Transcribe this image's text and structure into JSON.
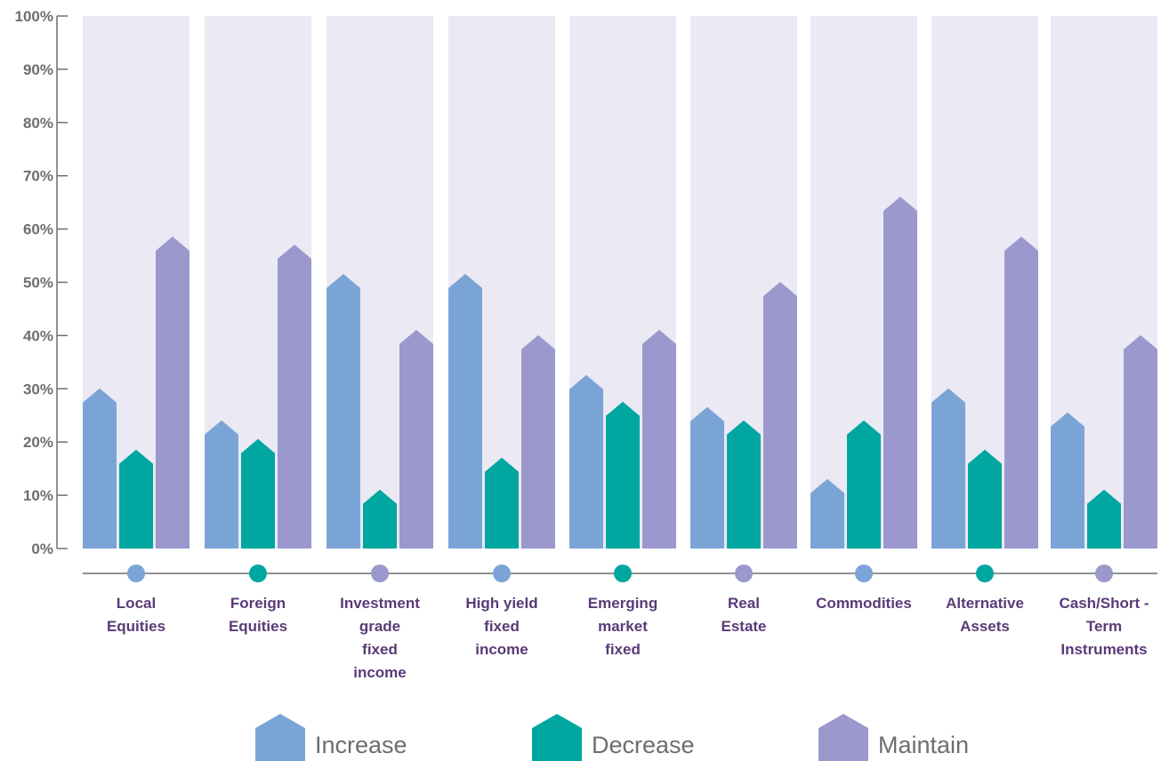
{
  "chart_data": {
    "type": "bar",
    "title": "",
    "xlabel": "",
    "ylabel": "",
    "ylim": [
      0,
      100
    ],
    "y_tick_labels": [
      "0%",
      "10%",
      "20%",
      "30%",
      "40%",
      "50%",
      "60%",
      "70%",
      "80%",
      "90%",
      "100%"
    ],
    "grid": false,
    "legend_position": "bottom",
    "categories": [
      "Local Equities",
      "Foreign Equities",
      "Investment grade fixed income",
      "High yield fixed income",
      "Emerging market fixed",
      "Real Estate",
      "Commodities",
      "Alternative Assets",
      "Cash/Short - Term Instruments"
    ],
    "category_label_lines": [
      [
        "Local",
        "Equities"
      ],
      [
        "Foreign",
        "Equities"
      ],
      [
        "Investment",
        "grade",
        "fixed",
        "income"
      ],
      [
        "High yield",
        "fixed",
        "income"
      ],
      [
        "Emerging",
        "market",
        "fixed"
      ],
      [
        "Real",
        "Estate"
      ],
      [
        "Commodities"
      ],
      [
        "Alternative",
        "Assets"
      ],
      [
        "Cash/Short -",
        "Term",
        "Instruments"
      ]
    ],
    "category_marker_series": [
      "Increase",
      "Decrease",
      "Maintain",
      "Increase",
      "Decrease",
      "Maintain",
      "Increase",
      "Decrease",
      "Maintain"
    ],
    "series": [
      {
        "name": "Increase",
        "color": "#7ba4d6",
        "values": [
          29,
          23,
          50.5,
          50.5,
          31.5,
          25.5,
          12,
          29,
          24.5
        ]
      },
      {
        "name": "Decrease",
        "color": "#00a7a0",
        "values": [
          17.5,
          19.5,
          10,
          16,
          26.5,
          23,
          23,
          17.5,
          10
        ]
      },
      {
        "name": "Maintain",
        "color": "#9a98cc",
        "values": [
          57.5,
          56,
          40,
          39,
          40,
          49,
          65,
          57.5,
          39
        ]
      }
    ],
    "background_band_color": "#ebe9f4",
    "axis_color": "#6d6e71"
  }
}
